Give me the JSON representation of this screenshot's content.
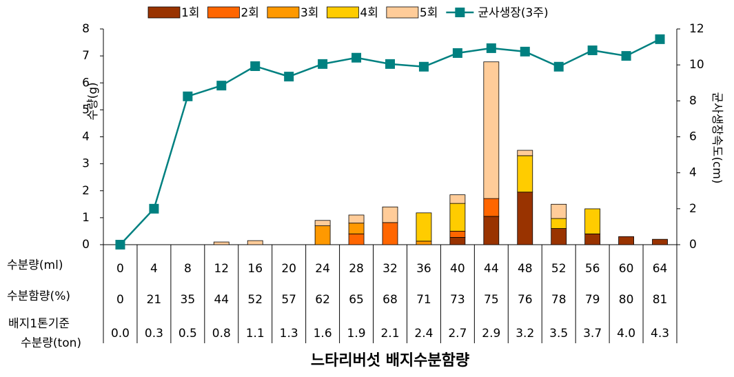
{
  "chart_data": {
    "type": "bar",
    "stacked": true,
    "categories": [
      "0",
      "4",
      "8",
      "12",
      "16",
      "20",
      "24",
      "28",
      "32",
      "36",
      "40",
      "44",
      "48",
      "52",
      "56",
      "60",
      "64"
    ],
    "category_label": "수분량(ml)",
    "table_rows": [
      {
        "label": [
          "수분함량(%)"
        ],
        "values": [
          "0",
          "21",
          "35",
          "44",
          "52",
          "57",
          "62",
          "65",
          "68",
          "71",
          "73",
          "75",
          "76",
          "78",
          "79",
          "80",
          "81"
        ]
      },
      {
        "label": [
          "배지1톤기준",
          "수분량(ton)"
        ],
        "values": [
          "0.0",
          "0.3",
          "0.5",
          "0.8",
          "1.1",
          "1.3",
          "1.6",
          "1.9",
          "2.1",
          "2.4",
          "2.7",
          "2.9",
          "3.2",
          "3.5",
          "3.7",
          "4.0",
          "4.3"
        ]
      }
    ],
    "xlabel": "느타리버섯 배지수분함량",
    "ylabel": "수량(g)",
    "y2label": "균사생장속도(cm)",
    "ylim": [
      0,
      8
    ],
    "yticks": [
      0,
      1,
      2,
      3,
      4,
      5,
      6,
      7,
      8
    ],
    "y2lim": [
      0,
      12
    ],
    "y2ticks": [
      0,
      2,
      4,
      6,
      8,
      10,
      12
    ],
    "series": [
      {
        "name": "1회",
        "color": "#993300",
        "values": [
          null,
          null,
          null,
          null,
          null,
          null,
          null,
          null,
          null,
          null,
          0.27,
          1.05,
          1.95,
          0.6,
          0.4,
          0.3,
          0.2
        ]
      },
      {
        "name": "2회",
        "color": "#ff6600",
        "values": [
          null,
          null,
          null,
          null,
          null,
          null,
          null,
          0.4,
          0.82,
          null,
          0.23,
          0.66,
          null,
          null,
          null,
          null,
          null
        ]
      },
      {
        "name": "3회",
        "color": "#ff9900",
        "values": [
          null,
          null,
          null,
          null,
          null,
          null,
          0.7,
          0.4,
          null,
          0.13,
          null,
          null,
          null,
          null,
          null,
          null,
          null
        ]
      },
      {
        "name": "4회",
        "color": "#ffcc00",
        "values": [
          null,
          null,
          null,
          null,
          null,
          null,
          null,
          null,
          null,
          1.05,
          1.03,
          null,
          1.35,
          0.37,
          0.93,
          null,
          null
        ]
      },
      {
        "name": "5회",
        "color": "#ffcc99",
        "values": [
          null,
          null,
          null,
          0.1,
          0.15,
          null,
          0.2,
          0.3,
          0.58,
          null,
          0.32,
          5.07,
          0.2,
          0.53,
          null,
          null,
          null
        ]
      },
      {
        "name": "균사생장(3주)",
        "color": "#008080",
        "type": "line",
        "axis": "y2",
        "values": [
          0,
          2.0,
          8.25,
          8.85,
          9.93,
          9.35,
          10.05,
          10.4,
          10.05,
          9.9,
          10.66,
          10.93,
          10.74,
          9.9,
          10.81,
          10.5,
          11.43
        ]
      }
    ]
  }
}
